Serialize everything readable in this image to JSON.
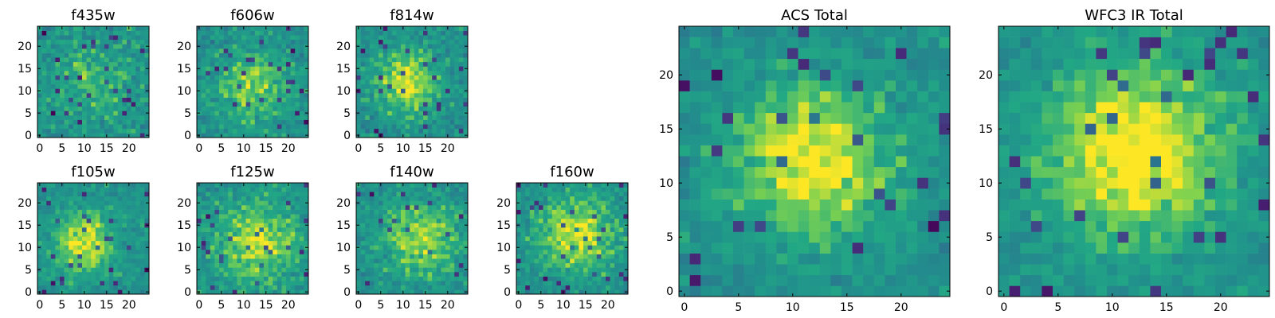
{
  "chart_data": [
    {
      "type": "heatmap",
      "title": "f435w",
      "xlim": [
        0,
        24
      ],
      "ylim": [
        0,
        24
      ],
      "xticks": [
        "0",
        "5",
        "10",
        "15",
        "20"
      ],
      "yticks": [
        "0",
        "5",
        "10",
        "15",
        "20"
      ],
      "colormap": "viridis",
      "peak": [
        12,
        12
      ],
      "spread": 7,
      "contrast": 0.15,
      "noise": 0.45
    },
    {
      "type": "heatmap",
      "title": "f606w",
      "xlim": [
        0,
        24
      ],
      "ylim": [
        0,
        24
      ],
      "xticks": [
        "0",
        "5",
        "10",
        "15",
        "20"
      ],
      "yticks": [
        "0",
        "5",
        "10",
        "15",
        "20"
      ],
      "colormap": "viridis",
      "peak": [
        12,
        11
      ],
      "spread": 6,
      "contrast": 0.25,
      "noise": 0.4
    },
    {
      "type": "heatmap",
      "title": "f814w",
      "xlim": [
        0,
        24
      ],
      "ylim": [
        0,
        24
      ],
      "xticks": [
        "0",
        "5",
        "10",
        "15",
        "20"
      ],
      "yticks": [
        "0",
        "5",
        "10",
        "15",
        "20"
      ],
      "colormap": "viridis",
      "peak": [
        11,
        12
      ],
      "spread": 5,
      "contrast": 0.35,
      "noise": 0.38
    },
    {
      "type": "heatmap",
      "title": "f105w",
      "xlim": [
        0,
        24
      ],
      "ylim": [
        0,
        24
      ],
      "xticks": [
        "0",
        "5",
        "10",
        "15",
        "20"
      ],
      "yticks": [
        "0",
        "5",
        "10",
        "15",
        "20"
      ],
      "colormap": "viridis",
      "peak": [
        10,
        11
      ],
      "spread": 5,
      "contrast": 0.35,
      "noise": 0.35
    },
    {
      "type": "heatmap",
      "title": "f125w",
      "xlim": [
        0,
        24
      ],
      "ylim": [
        0,
        24
      ],
      "xticks": [
        "0",
        "5",
        "10",
        "15",
        "20"
      ],
      "yticks": [
        "0",
        "5",
        "10",
        "15",
        "20"
      ],
      "colormap": "viridis",
      "peak": [
        13,
        11
      ],
      "spread": 7,
      "contrast": 0.3,
      "noise": 0.38
    },
    {
      "type": "heatmap",
      "title": "f140w",
      "xlim": [
        0,
        24
      ],
      "ylim": [
        0,
        24
      ],
      "xticks": [
        "0",
        "5",
        "10",
        "15",
        "20"
      ],
      "yticks": [
        "0",
        "5",
        "10",
        "15",
        "20"
      ],
      "colormap": "viridis",
      "peak": [
        14,
        12
      ],
      "spread": 6,
      "contrast": 0.3,
      "noise": 0.38
    },
    {
      "type": "heatmap",
      "title": "f160w",
      "xlim": [
        0,
        24
      ],
      "ylim": [
        0,
        24
      ],
      "xticks": [
        "0",
        "5",
        "10",
        "15",
        "20"
      ],
      "yticks": [
        "0",
        "5",
        "10",
        "15",
        "20"
      ],
      "colormap": "viridis",
      "peak": [
        13,
        13
      ],
      "spread": 6,
      "contrast": 0.35,
      "noise": 0.38
    },
    {
      "type": "heatmap",
      "title": "ACS Total",
      "xlim": [
        0,
        24
      ],
      "ylim": [
        0,
        24
      ],
      "xticks": [
        "0",
        "5",
        "10",
        "15",
        "20"
      ],
      "yticks": [
        "0",
        "5",
        "10",
        "15",
        "20"
      ],
      "colormap": "viridis",
      "peak": [
        12,
        12
      ],
      "spread": 5,
      "contrast": 0.4,
      "noise": 0.32
    },
    {
      "type": "heatmap",
      "title": "WFC3 IR Total",
      "xlim": [
        0,
        24
      ],
      "ylim": [
        0,
        24
      ],
      "xticks": [
        "0",
        "5",
        "10",
        "15",
        "20"
      ],
      "yticks": [
        "0",
        "5",
        "10",
        "15",
        "20"
      ],
      "colormap": "viridis",
      "peak": [
        12,
        13
      ],
      "spread": 6,
      "contrast": 0.4,
      "noise": 0.3
    }
  ]
}
